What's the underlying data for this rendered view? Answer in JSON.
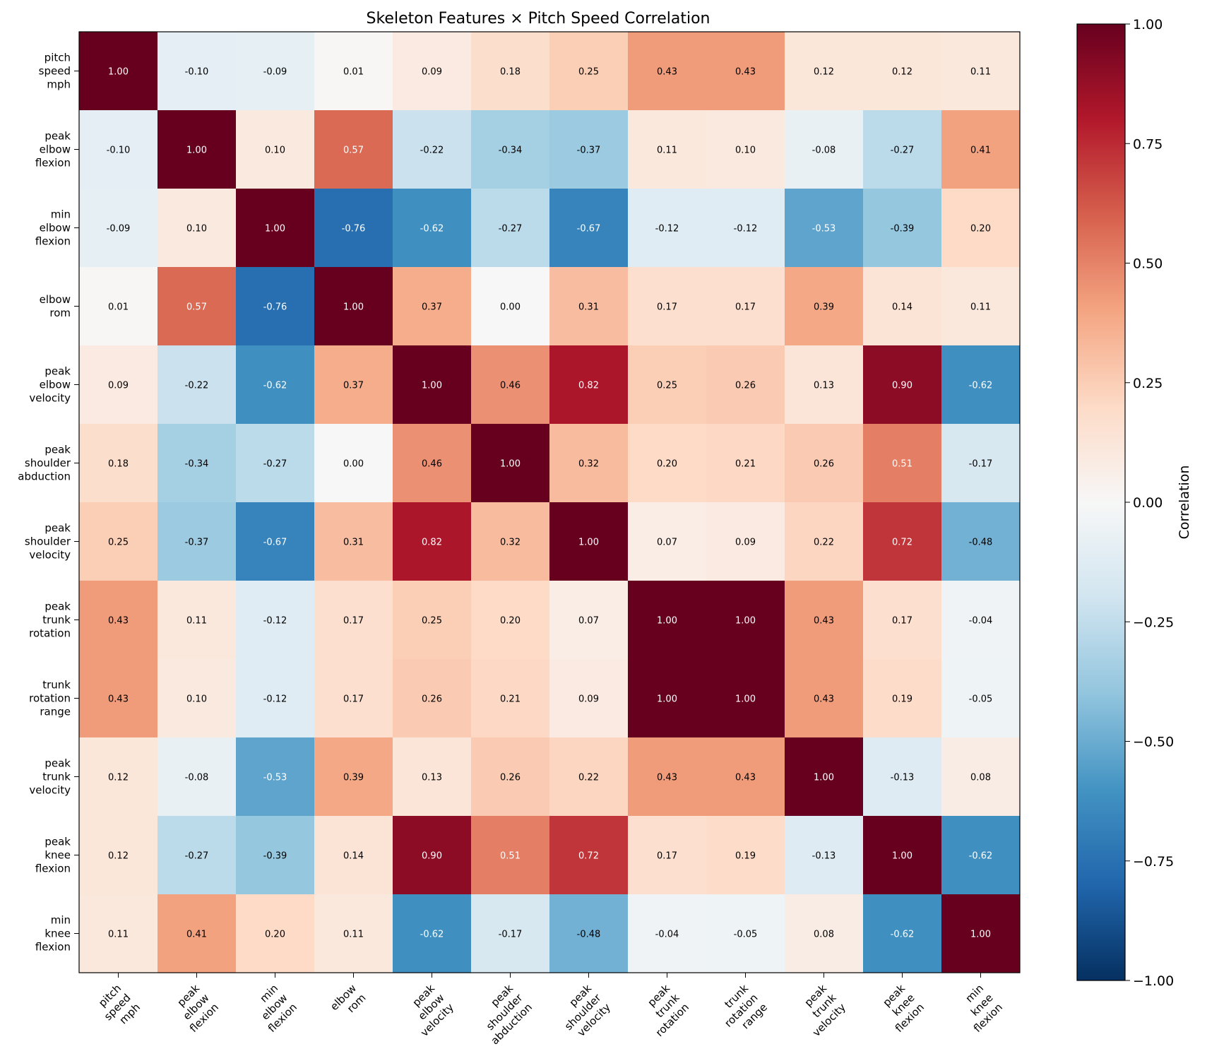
{
  "chart_data": {
    "type": "heatmap",
    "title": "Skeleton Features × Pitch Speed Correlation",
    "colorbar_label": "Correlation",
    "value_range": [
      -1.0,
      1.0
    ],
    "colorbar_ticks": [
      "1.00",
      "0.75",
      "0.50",
      "0.25",
      "0.00",
      "−0.25",
      "−0.50",
      "−0.75",
      "−1.00"
    ],
    "colorbar_tick_values": [
      1.0,
      0.75,
      0.5,
      0.25,
      0.0,
      -0.25,
      -0.5,
      -0.75,
      -1.0
    ],
    "labels": [
      [
        "pitch",
        "speed",
        "mph"
      ],
      [
        "peak",
        "elbow",
        "flexion"
      ],
      [
        "min",
        "elbow",
        "flexion"
      ],
      [
        "elbow",
        "rom"
      ],
      [
        "peak",
        "elbow",
        "velocity"
      ],
      [
        "peak",
        "shoulder",
        "abduction"
      ],
      [
        "peak",
        "shoulder",
        "velocity"
      ],
      [
        "peak",
        "trunk",
        "rotation"
      ],
      [
        "trunk",
        "rotation",
        "range"
      ],
      [
        "peak",
        "trunk",
        "velocity"
      ],
      [
        "peak",
        "knee",
        "flexion"
      ],
      [
        "min",
        "knee",
        "flexion"
      ]
    ],
    "matrix": [
      [
        1.0,
        -0.1,
        -0.09,
        0.01,
        0.09,
        0.18,
        0.25,
        0.43,
        0.43,
        0.12,
        0.12,
        0.11
      ],
      [
        -0.1,
        1.0,
        0.1,
        0.57,
        -0.22,
        -0.34,
        -0.37,
        0.11,
        0.1,
        -0.08,
        -0.27,
        0.41
      ],
      [
        -0.09,
        0.1,
        1.0,
        -0.76,
        -0.62,
        -0.27,
        -0.67,
        -0.12,
        -0.12,
        -0.53,
        -0.39,
        0.2
      ],
      [
        0.01,
        0.57,
        -0.76,
        1.0,
        0.37,
        0.0,
        0.31,
        0.17,
        0.17,
        0.39,
        0.14,
        0.11
      ],
      [
        0.09,
        -0.22,
        -0.62,
        0.37,
        1.0,
        0.46,
        0.82,
        0.25,
        0.26,
        0.13,
        0.9,
        -0.62
      ],
      [
        0.18,
        -0.34,
        -0.27,
        0.0,
        0.46,
        1.0,
        0.32,
        0.2,
        0.21,
        0.26,
        0.51,
        -0.17
      ],
      [
        0.25,
        -0.37,
        -0.67,
        0.31,
        0.82,
        0.32,
        1.0,
        0.07,
        0.09,
        0.22,
        0.72,
        -0.48
      ],
      [
        0.43,
        0.11,
        -0.12,
        0.17,
        0.25,
        0.2,
        0.07,
        1.0,
        1.0,
        0.43,
        0.17,
        -0.04
      ],
      [
        0.43,
        0.1,
        -0.12,
        0.17,
        0.26,
        0.21,
        0.09,
        1.0,
        1.0,
        0.43,
        0.19,
        -0.05
      ],
      [
        0.12,
        -0.08,
        -0.53,
        0.39,
        0.13,
        0.26,
        0.22,
        0.43,
        0.43,
        1.0,
        -0.13,
        0.08
      ],
      [
        0.12,
        -0.27,
        -0.39,
        0.14,
        0.9,
        0.51,
        0.72,
        0.17,
        0.19,
        -0.13,
        1.0,
        -0.62
      ],
      [
        0.11,
        0.41,
        0.2,
        0.11,
        -0.62,
        -0.17,
        -0.48,
        -0.04,
        -0.05,
        0.08,
        -0.62,
        1.0
      ]
    ],
    "colormap": "RdBu_r",
    "colormap_stops": [
      "#053061",
      "#2166ac",
      "#4393c3",
      "#92c5de",
      "#d1e5f0",
      "#f7f7f7",
      "#fddbc7",
      "#f4a582",
      "#d6604d",
      "#b2182b",
      "#67001f"
    ]
  }
}
